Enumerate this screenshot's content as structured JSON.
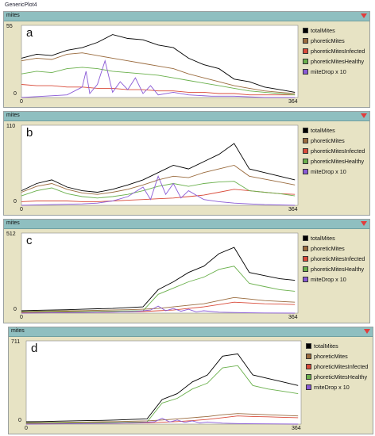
{
  "window_title": "GenericPlot4",
  "colors": {
    "totalMites": "#000000",
    "phoreticMites": "#9a6b3e",
    "phoreticMitesInfected": "#d94b3a",
    "phoreticMitesHealthy": "#6ab04c",
    "miteDrop x 10": "#8a5ad6"
  },
  "panels": [
    {
      "header": "mites",
      "letter": "a",
      "ymax_label": "55",
      "ymin_label": "0",
      "xmin_label": "0",
      "xmax_label": "364",
      "legend": [
        "totalMites",
        "phoreticMites",
        "phoreticMitesInfected",
        "phoreticMitesHealthy",
        "miteDrop x 10"
      ]
    },
    {
      "header": "mites",
      "letter": "b",
      "ymax_label": "110",
      "ymin_label": "0",
      "xmin_label": "0",
      "xmax_label": "364",
      "legend": [
        "totalMites",
        "phoreticMites",
        "phoreticMitesInfected",
        "phoreticMitesHealthy",
        "miteDrop x 10"
      ]
    },
    {
      "header": "mites",
      "letter": "c",
      "ymax_label": "512",
      "ymin_label": "0",
      "xmin_label": "0",
      "xmax_label": "364",
      "legend": [
        "totalMites",
        "phoreticMites",
        "phoreticMitesInfected",
        "phoreticMitesHealthy",
        "miteDrop x 10"
      ]
    },
    {
      "header": "mites",
      "letter": "d",
      "ymax_label": "711",
      "ymin_label": "0",
      "xmin_label": "0",
      "xmax_label": "364",
      "legend": [
        "totalMites",
        "phoreticMites",
        "phoreticMitesInfected",
        "phoreticMitesHealthy",
        "miteDrop x 10"
      ]
    }
  ],
  "chart_data": [
    {
      "type": "line",
      "xlim": [
        0,
        364
      ],
      "ylim": [
        0,
        55
      ],
      "series": [
        {
          "name": "totalMites",
          "x": [
            0,
            20,
            40,
            60,
            80,
            100,
            120,
            140,
            160,
            180,
            200,
            220,
            240,
            260,
            280,
            300,
            320,
            340,
            360
          ],
          "y": [
            30,
            33,
            32,
            36,
            38,
            42,
            48,
            45,
            44,
            40,
            38,
            30,
            25,
            22,
            14,
            12,
            8,
            6,
            4
          ]
        },
        {
          "name": "phoreticMites",
          "x": [
            0,
            20,
            40,
            60,
            80,
            100,
            120,
            140,
            160,
            180,
            200,
            220,
            240,
            260,
            280,
            300,
            320,
            340,
            360
          ],
          "y": [
            28,
            30,
            29,
            33,
            34,
            32,
            30,
            28,
            26,
            24,
            22,
            18,
            15,
            12,
            9,
            7,
            5,
            4,
            3
          ]
        },
        {
          "name": "phoreticMitesInfected",
          "x": [
            0,
            20,
            40,
            60,
            80,
            100,
            120,
            140,
            160,
            180,
            200,
            220,
            240,
            260,
            280,
            300,
            320,
            340,
            360
          ],
          "y": [
            10,
            9,
            9,
            8,
            8,
            7,
            7,
            6,
            6,
            5,
            5,
            4,
            4,
            3,
            3,
            2,
            2,
            2,
            2
          ]
        },
        {
          "name": "phoreticMitesHealthy",
          "x": [
            0,
            20,
            40,
            60,
            80,
            100,
            120,
            140,
            160,
            180,
            200,
            220,
            240,
            260,
            280,
            300,
            320,
            340,
            360
          ],
          "y": [
            18,
            20,
            19,
            22,
            23,
            22,
            20,
            19,
            18,
            17,
            15,
            13,
            11,
            9,
            7,
            5,
            4,
            3,
            2
          ]
        },
        {
          "name": "miteDrop x 10",
          "x": [
            0,
            30,
            60,
            80,
            85,
            90,
            100,
            110,
            120,
            130,
            140,
            150,
            160,
            170,
            180,
            200,
            220,
            250,
            280,
            320,
            360
          ],
          "y": [
            0,
            1,
            2,
            8,
            20,
            3,
            10,
            28,
            4,
            12,
            6,
            15,
            3,
            9,
            2,
            4,
            2,
            1,
            1,
            0,
            0
          ]
        }
      ]
    },
    {
      "type": "line",
      "xlim": [
        0,
        364
      ],
      "ylim": [
        0,
        110
      ],
      "series": [
        {
          "name": "totalMites",
          "x": [
            0,
            20,
            40,
            60,
            80,
            100,
            120,
            140,
            160,
            180,
            200,
            220,
            240,
            260,
            280,
            300,
            320,
            340,
            360
          ],
          "y": [
            20,
            30,
            35,
            25,
            20,
            18,
            22,
            28,
            35,
            45,
            55,
            50,
            60,
            70,
            85,
            50,
            45,
            40,
            35
          ]
        },
        {
          "name": "phoreticMites",
          "x": [
            0,
            20,
            40,
            60,
            80,
            100,
            120,
            140,
            160,
            180,
            200,
            220,
            240,
            260,
            280,
            300,
            320,
            340,
            360
          ],
          "y": [
            18,
            26,
            30,
            22,
            17,
            15,
            18,
            22,
            28,
            35,
            40,
            38,
            45,
            50,
            55,
            40,
            36,
            32,
            28
          ]
        },
        {
          "name": "phoreticMitesInfected",
          "x": [
            0,
            20,
            40,
            60,
            80,
            100,
            120,
            140,
            160,
            180,
            200,
            220,
            240,
            260,
            280,
            300,
            320,
            340,
            360
          ],
          "y": [
            5,
            6,
            6,
            6,
            5,
            5,
            6,
            7,
            8,
            9,
            10,
            12,
            14,
            18,
            22,
            20,
            18,
            16,
            15
          ]
        },
        {
          "name": "phoreticMitesHealthy",
          "x": [
            0,
            20,
            40,
            60,
            80,
            100,
            120,
            140,
            160,
            180,
            200,
            220,
            240,
            260,
            280,
            300,
            320,
            340,
            360
          ],
          "y": [
            13,
            20,
            24,
            16,
            12,
            10,
            12,
            15,
            20,
            26,
            30,
            26,
            30,
            32,
            33,
            20,
            18,
            16,
            13
          ]
        },
        {
          "name": "miteDrop x 10",
          "x": [
            0,
            40,
            80,
            100,
            120,
            140,
            160,
            170,
            180,
            190,
            200,
            210,
            220,
            240,
            260,
            280,
            300,
            320,
            360
          ],
          "y": [
            0,
            1,
            2,
            3,
            6,
            12,
            25,
            8,
            40,
            15,
            30,
            10,
            20,
            8,
            5,
            3,
            2,
            1,
            0
          ]
        }
      ]
    },
    {
      "type": "line",
      "xlim": [
        0,
        364
      ],
      "ylim": [
        0,
        512
      ],
      "series": [
        {
          "name": "totalMites",
          "x": [
            0,
            20,
            40,
            60,
            80,
            100,
            120,
            140,
            160,
            180,
            200,
            220,
            240,
            260,
            280,
            300,
            320,
            340,
            360
          ],
          "y": [
            15,
            18,
            20,
            22,
            25,
            28,
            30,
            35,
            40,
            150,
            200,
            260,
            300,
            380,
            420,
            260,
            240,
            220,
            210
          ]
        },
        {
          "name": "phoreticMites",
          "x": [
            0,
            20,
            40,
            60,
            80,
            100,
            120,
            140,
            160,
            180,
            200,
            220,
            240,
            260,
            280,
            300,
            320,
            340,
            360
          ],
          "y": [
            10,
            12,
            14,
            15,
            16,
            18,
            20,
            22,
            25,
            30,
            40,
            50,
            60,
            80,
            100,
            90,
            80,
            75,
            70
          ]
        },
        {
          "name": "phoreticMitesInfected",
          "x": [
            0,
            20,
            40,
            60,
            80,
            100,
            120,
            140,
            160,
            180,
            200,
            220,
            240,
            260,
            280,
            300,
            320,
            340,
            360
          ],
          "y": [
            3,
            4,
            4,
            5,
            6,
            6,
            7,
            8,
            10,
            15,
            20,
            30,
            40,
            55,
            70,
            65,
            60,
            58,
            55
          ]
        },
        {
          "name": "phoreticMitesHealthy",
          "x": [
            0,
            20,
            40,
            60,
            80,
            100,
            120,
            140,
            160,
            180,
            200,
            220,
            240,
            260,
            280,
            300,
            320,
            340,
            360
          ],
          "y": [
            7,
            8,
            10,
            10,
            10,
            12,
            13,
            14,
            15,
            120,
            160,
            200,
            230,
            280,
            300,
            190,
            170,
            150,
            140
          ]
        },
        {
          "name": "miteDrop x 10",
          "x": [
            0,
            40,
            80,
            120,
            150,
            170,
            180,
            190,
            200,
            210,
            220,
            230,
            240,
            260,
            280,
            300,
            320,
            360
          ],
          "y": [
            0,
            2,
            4,
            6,
            10,
            20,
            45,
            15,
            30,
            12,
            25,
            8,
            15,
            6,
            4,
            2,
            1,
            0
          ]
        }
      ]
    },
    {
      "type": "line",
      "xlim": [
        0,
        364
      ],
      "ylim": [
        0,
        711
      ],
      "series": [
        {
          "name": "totalMites",
          "x": [
            0,
            20,
            40,
            60,
            80,
            100,
            120,
            140,
            160,
            180,
            200,
            220,
            240,
            260,
            280,
            300,
            320,
            340,
            360
          ],
          "y": [
            20,
            22,
            25,
            28,
            30,
            32,
            35,
            40,
            45,
            210,
            260,
            360,
            420,
            580,
            600,
            420,
            390,
            360,
            330
          ]
        },
        {
          "name": "phoreticMites",
          "x": [
            0,
            20,
            40,
            60,
            80,
            100,
            120,
            140,
            160,
            180,
            200,
            220,
            240,
            260,
            280,
            300,
            320,
            340,
            360
          ],
          "y": [
            12,
            14,
            15,
            16,
            18,
            20,
            22,
            25,
            28,
            35,
            45,
            55,
            65,
            80,
            90,
            85,
            80,
            75,
            70
          ]
        },
        {
          "name": "phoreticMitesInfected",
          "x": [
            0,
            20,
            40,
            60,
            80,
            100,
            120,
            140,
            160,
            180,
            200,
            220,
            240,
            260,
            280,
            300,
            320,
            340,
            360
          ],
          "y": [
            4,
            5,
            5,
            6,
            6,
            7,
            8,
            9,
            11,
            16,
            22,
            30,
            40,
            55,
            70,
            65,
            62,
            58,
            55
          ]
        },
        {
          "name": "phoreticMitesHealthy",
          "x": [
            0,
            20,
            40,
            60,
            80,
            100,
            120,
            140,
            160,
            180,
            200,
            220,
            240,
            260,
            280,
            300,
            320,
            340,
            360
          ],
          "y": [
            8,
            9,
            10,
            11,
            12,
            13,
            14,
            16,
            18,
            180,
            220,
            300,
            350,
            480,
            500,
            330,
            300,
            280,
            260
          ]
        },
        {
          "name": "miteDrop x 10",
          "x": [
            0,
            40,
            80,
            120,
            150,
            170,
            180,
            190,
            200,
            210,
            220,
            230,
            240,
            260,
            280,
            300,
            320,
            360
          ],
          "y": [
            0,
            2,
            5,
            8,
            12,
            20,
            50,
            18,
            35,
            15,
            28,
            10,
            18,
            8,
            5,
            3,
            2,
            0
          ]
        }
      ]
    }
  ]
}
